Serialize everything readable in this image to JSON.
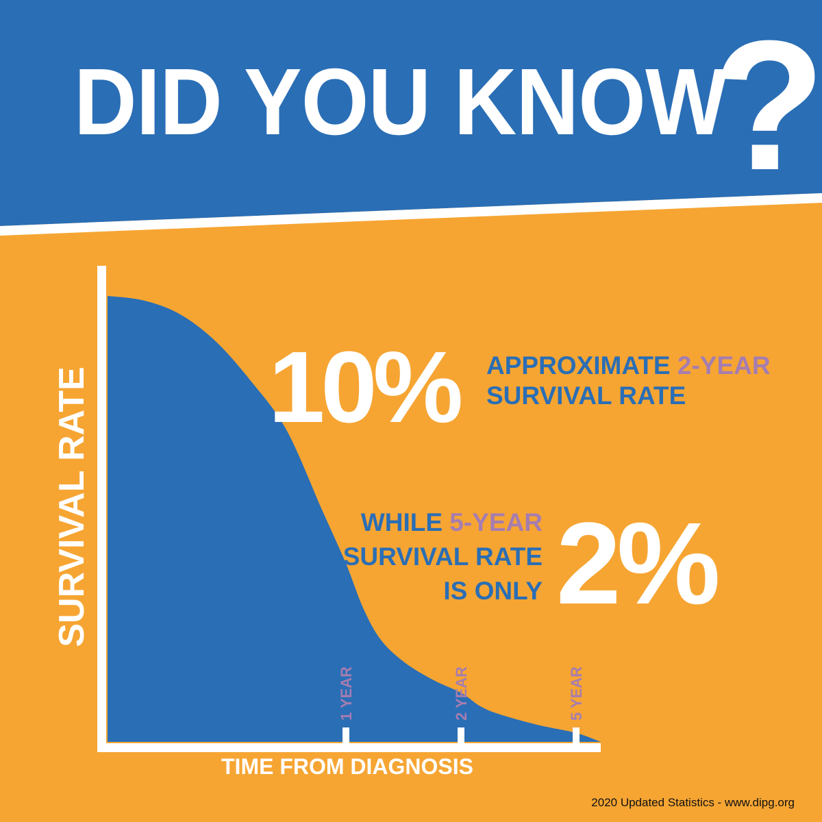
{
  "colors": {
    "background": "#F6A533",
    "banner": "#2A6EB5",
    "curve_fill": "#2A6EB5",
    "axis": "#ffffff",
    "highlight": "#A57DB0",
    "stat_text": "#2A6EB5"
  },
  "header": {
    "title": "DID YOU KNOW",
    "question_mark": "?"
  },
  "stats": {
    "two_year": {
      "value": "10%",
      "line1_prefix": "APPROXIMATE ",
      "line1_highlight": "2-YEAR",
      "line2": "SURVIVAL RATE"
    },
    "five_year": {
      "value": "2%",
      "line1_prefix": "WHILE ",
      "line1_highlight": "5-YEAR",
      "line2": "SURVIVAL RATE",
      "line3": "IS ONLY"
    }
  },
  "footer": {
    "source": "2020 Updated Statistics - www.dipg.org"
  },
  "chart_data": {
    "type": "area",
    "xlabel": "TIME FROM DIAGNOSIS",
    "ylabel": "SURVIVAL RATE",
    "tick_labels": [
      "1 YEAR",
      "2 YEAR",
      "5 YEAR"
    ],
    "tick_x": [
      1,
      2,
      5
    ],
    "x": [
      0,
      0.15,
      0.3,
      0.45,
      0.6,
      0.75,
      0.9,
      1.0,
      1.15,
      1.3,
      1.5,
      1.75,
      2.0,
      2.5,
      3.0,
      4.0,
      5.0,
      6.0
    ],
    "y": [
      100,
      99,
      96,
      90,
      81,
      70,
      52,
      40,
      30,
      23,
      18,
      14,
      11,
      8,
      6.2,
      3.8,
      2.0,
      0
    ],
    "grid": false,
    "legend": "none"
  }
}
